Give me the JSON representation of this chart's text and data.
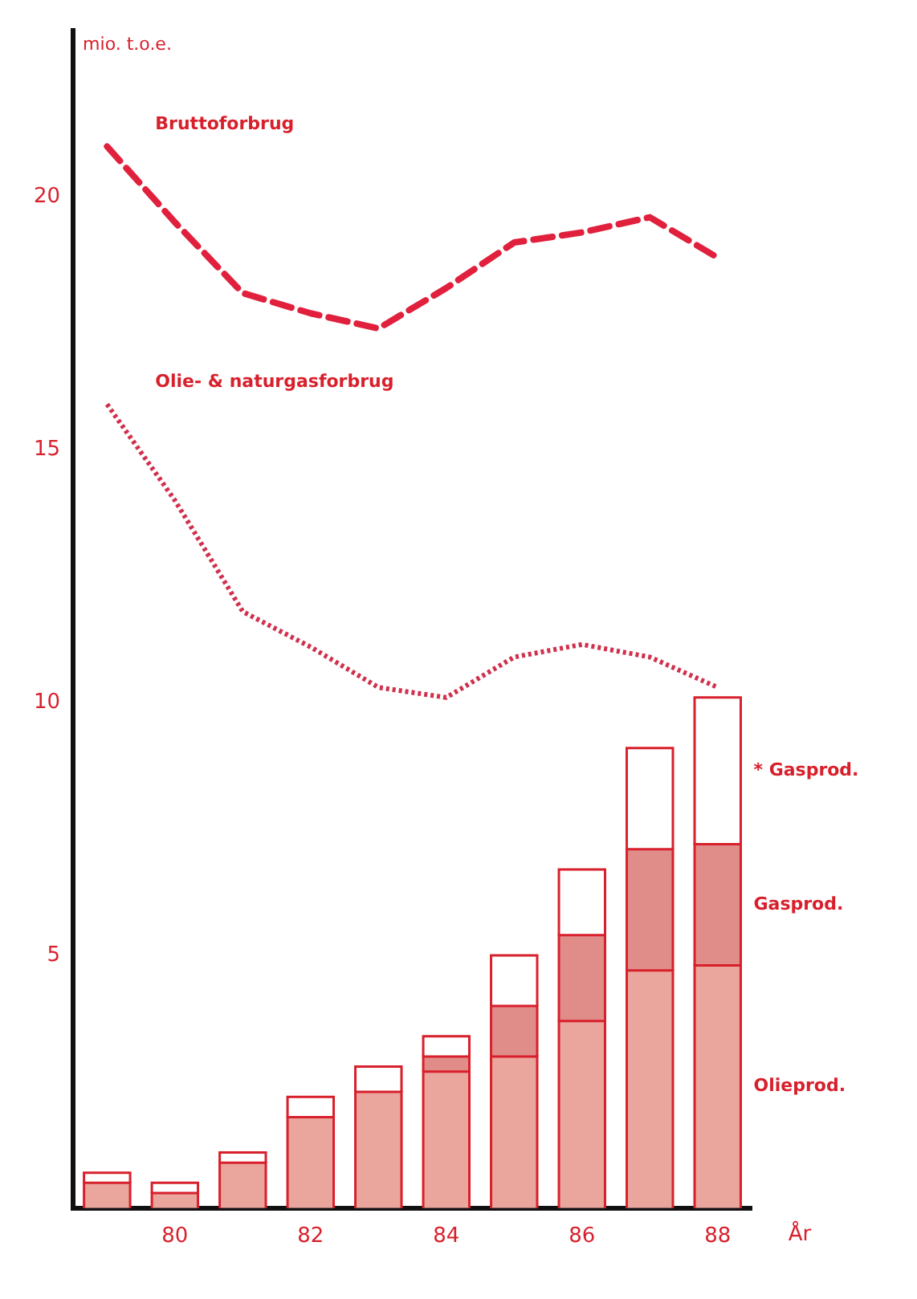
{
  "chart_data": {
    "type": "bar",
    "stacked": true,
    "ylabel": "mio. t.o.e.",
    "xlabel": "År",
    "categories": [
      null,
      "80",
      null,
      "82",
      null,
      "84",
      null,
      "86",
      null,
      "88"
    ],
    "ylim": [
      0,
      23.3
    ],
    "yticks": [
      5,
      10,
      15,
      20
    ],
    "grid": false,
    "legend": false,
    "marker": "none",
    "series": [
      {
        "name": "Olieprod.",
        "color": "#eaa59c",
        "values": [
          0.5,
          0.3,
          0.9,
          1.8,
          2.3,
          2.7,
          3.0,
          3.7,
          4.7,
          4.8
        ]
      },
      {
        "name": "Gasprod.",
        "color": "#e08d8a",
        "values": [
          0,
          0,
          0,
          0,
          0,
          0.3,
          1.0,
          1.7,
          2.4,
          2.4
        ]
      },
      {
        "name": "* Gasprod.",
        "color": "#ffffff",
        "values": [
          0.2,
          0.2,
          0.2,
          0.4,
          0.5,
          0.4,
          1.0,
          1.3,
          2.0,
          2.9
        ]
      },
      {
        "name": "Bruttoforbrug",
        "type": "line",
        "line_style": "dashed",
        "color": "#e0203c",
        "values": [
          21.0,
          19.5,
          18.1,
          17.7,
          17.4,
          18.2,
          19.1,
          19.3,
          19.6,
          18.8
        ]
      },
      {
        "name": "Olie- & naturgasforbrug",
        "type": "line",
        "line_style": "dotted",
        "color": "#d0304c",
        "values": [
          15.9,
          14.0,
          11.8,
          11.1,
          10.3,
          10.1,
          10.9,
          11.15,
          10.9,
          10.3
        ]
      }
    ]
  }
}
